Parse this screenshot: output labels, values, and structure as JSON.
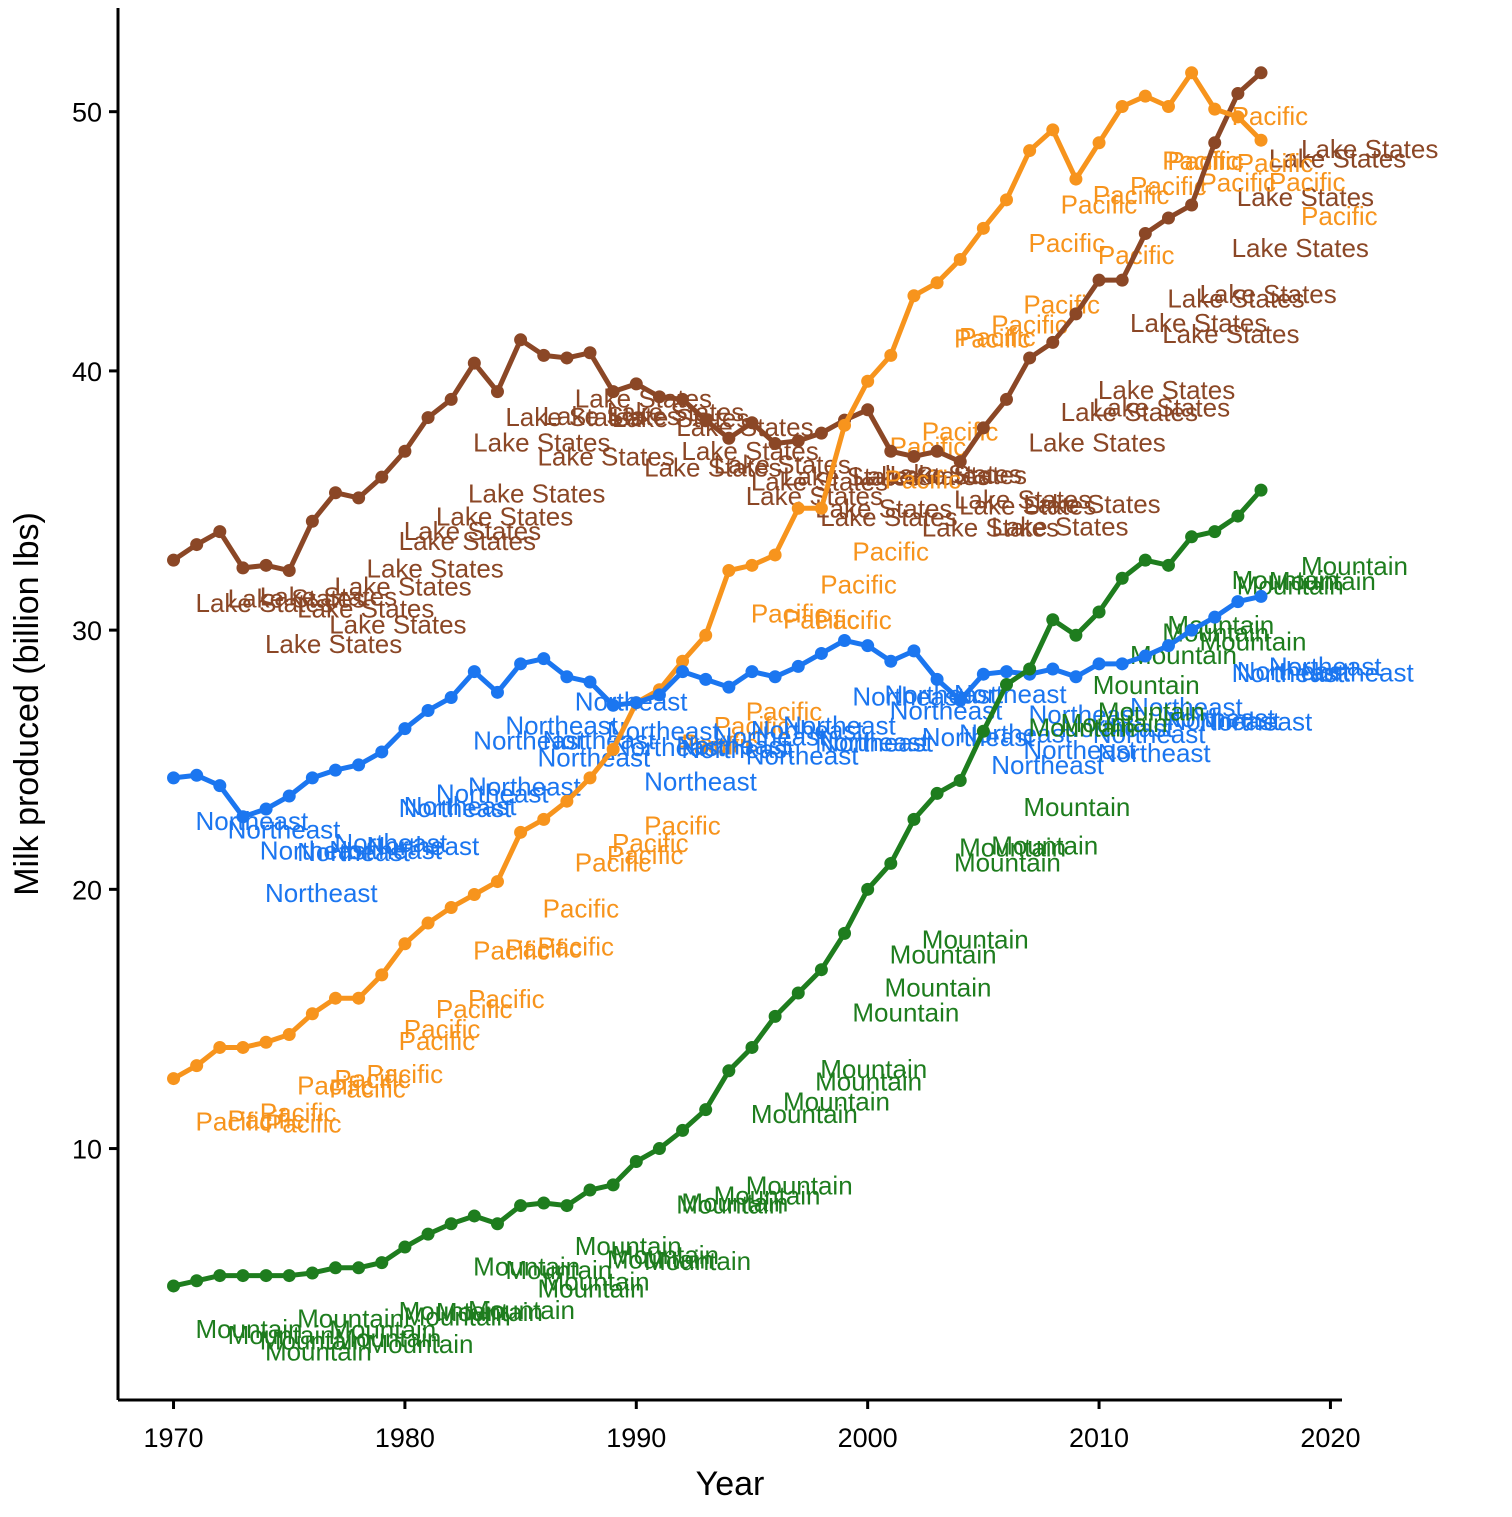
{
  "chart_data": {
    "type": "line",
    "x_label": "Year",
    "y_label": "Milk produced (billion lbs)",
    "x": [
      1970,
      1971,
      1972,
      1973,
      1974,
      1975,
      1976,
      1977,
      1978,
      1979,
      1980,
      1981,
      1982,
      1983,
      1984,
      1985,
      1986,
      1987,
      1988,
      1989,
      1990,
      1991,
      1992,
      1993,
      1994,
      1995,
      1996,
      1997,
      1998,
      1999,
      2000,
      2001,
      2002,
      2003,
      2004,
      2005,
      2006,
      2007,
      2008,
      2009,
      2010,
      2011,
      2012,
      2013,
      2014,
      2015,
      2016,
      2017
    ],
    "series": [
      {
        "name": "Lake States",
        "color": "#8b4726",
        "values": [
          32.7,
          33.3,
          33.8,
          32.4,
          32.5,
          32.3,
          34.2,
          35.3,
          35.1,
          35.9,
          36.9,
          38.2,
          38.9,
          40.3,
          39.2,
          41.2,
          40.6,
          40.5,
          40.7,
          39.2,
          39.5,
          39.0,
          38.9,
          38.1,
          37.4,
          38.0,
          37.2,
          37.3,
          37.6,
          38.1,
          38.5,
          36.9,
          36.7,
          36.9,
          36.5,
          37.8,
          38.9,
          40.5,
          41.1,
          42.2,
          43.5,
          43.5,
          45.3,
          45.9,
          46.4,
          48.8,
          50.7,
          51.5
        ]
      },
      {
        "name": "Pacific",
        "color": "#f7941d",
        "values": [
          12.7,
          13.2,
          13.9,
          13.9,
          14.1,
          14.4,
          15.2,
          15.8,
          15.8,
          16.7,
          17.9,
          18.7,
          19.3,
          19.8,
          20.3,
          22.2,
          22.7,
          23.4,
          24.3,
          25.4,
          27.2,
          27.7,
          28.8,
          29.8,
          32.3,
          32.5,
          32.9,
          34.7,
          34.7,
          37.9,
          39.6,
          40.6,
          42.9,
          43.4,
          44.3,
          45.5,
          46.6,
          48.5,
          49.3,
          47.4,
          48.8,
          50.2,
          50.6,
          50.2,
          51.5,
          50.1,
          49.8,
          48.9
        ]
      },
      {
        "name": "Northeast",
        "color": "#1b76f0",
        "values": [
          24.3,
          24.4,
          24.0,
          22.8,
          23.1,
          23.6,
          24.3,
          24.6,
          24.8,
          25.3,
          26.2,
          26.9,
          27.4,
          28.4,
          27.6,
          28.7,
          28.9,
          28.2,
          28.0,
          27.1,
          27.2,
          27.5,
          28.4,
          28.1,
          27.8,
          28.4,
          28.2,
          28.6,
          29.1,
          29.6,
          29.4,
          28.8,
          29.2,
          28.1,
          27.3,
          28.3,
          28.4,
          28.3,
          28.5,
          28.2,
          28.7,
          28.7,
          29.0,
          29.4,
          30.0,
          30.5,
          31.1,
          31.3
        ]
      },
      {
        "name": "Mountain",
        "color": "#1e7d1e",
        "values": [
          4.7,
          4.9,
          5.1,
          5.1,
          5.1,
          5.1,
          5.2,
          5.4,
          5.4,
          5.6,
          6.2,
          6.7,
          7.1,
          7.4,
          7.1,
          7.8,
          7.9,
          7.8,
          8.4,
          8.6,
          9.5,
          10.0,
          10.7,
          11.5,
          13.0,
          13.9,
          15.1,
          16.0,
          16.9,
          18.3,
          20.0,
          21.0,
          22.7,
          23.7,
          24.2,
          26.1,
          27.9,
          28.5,
          30.4,
          29.8,
          30.7,
          32.0,
          32.7,
          32.5,
          33.6,
          33.8,
          34.4,
          35.4
        ]
      }
    ],
    "xlim": [
      1967.6,
      2020.5
    ],
    "xticks": [
      1970,
      1980,
      1990,
      2000,
      2010,
      2020
    ],
    "ylim": [
      0.3,
      54
    ],
    "yticks": [
      10,
      20,
      30,
      40,
      50
    ],
    "grid": false
  }
}
